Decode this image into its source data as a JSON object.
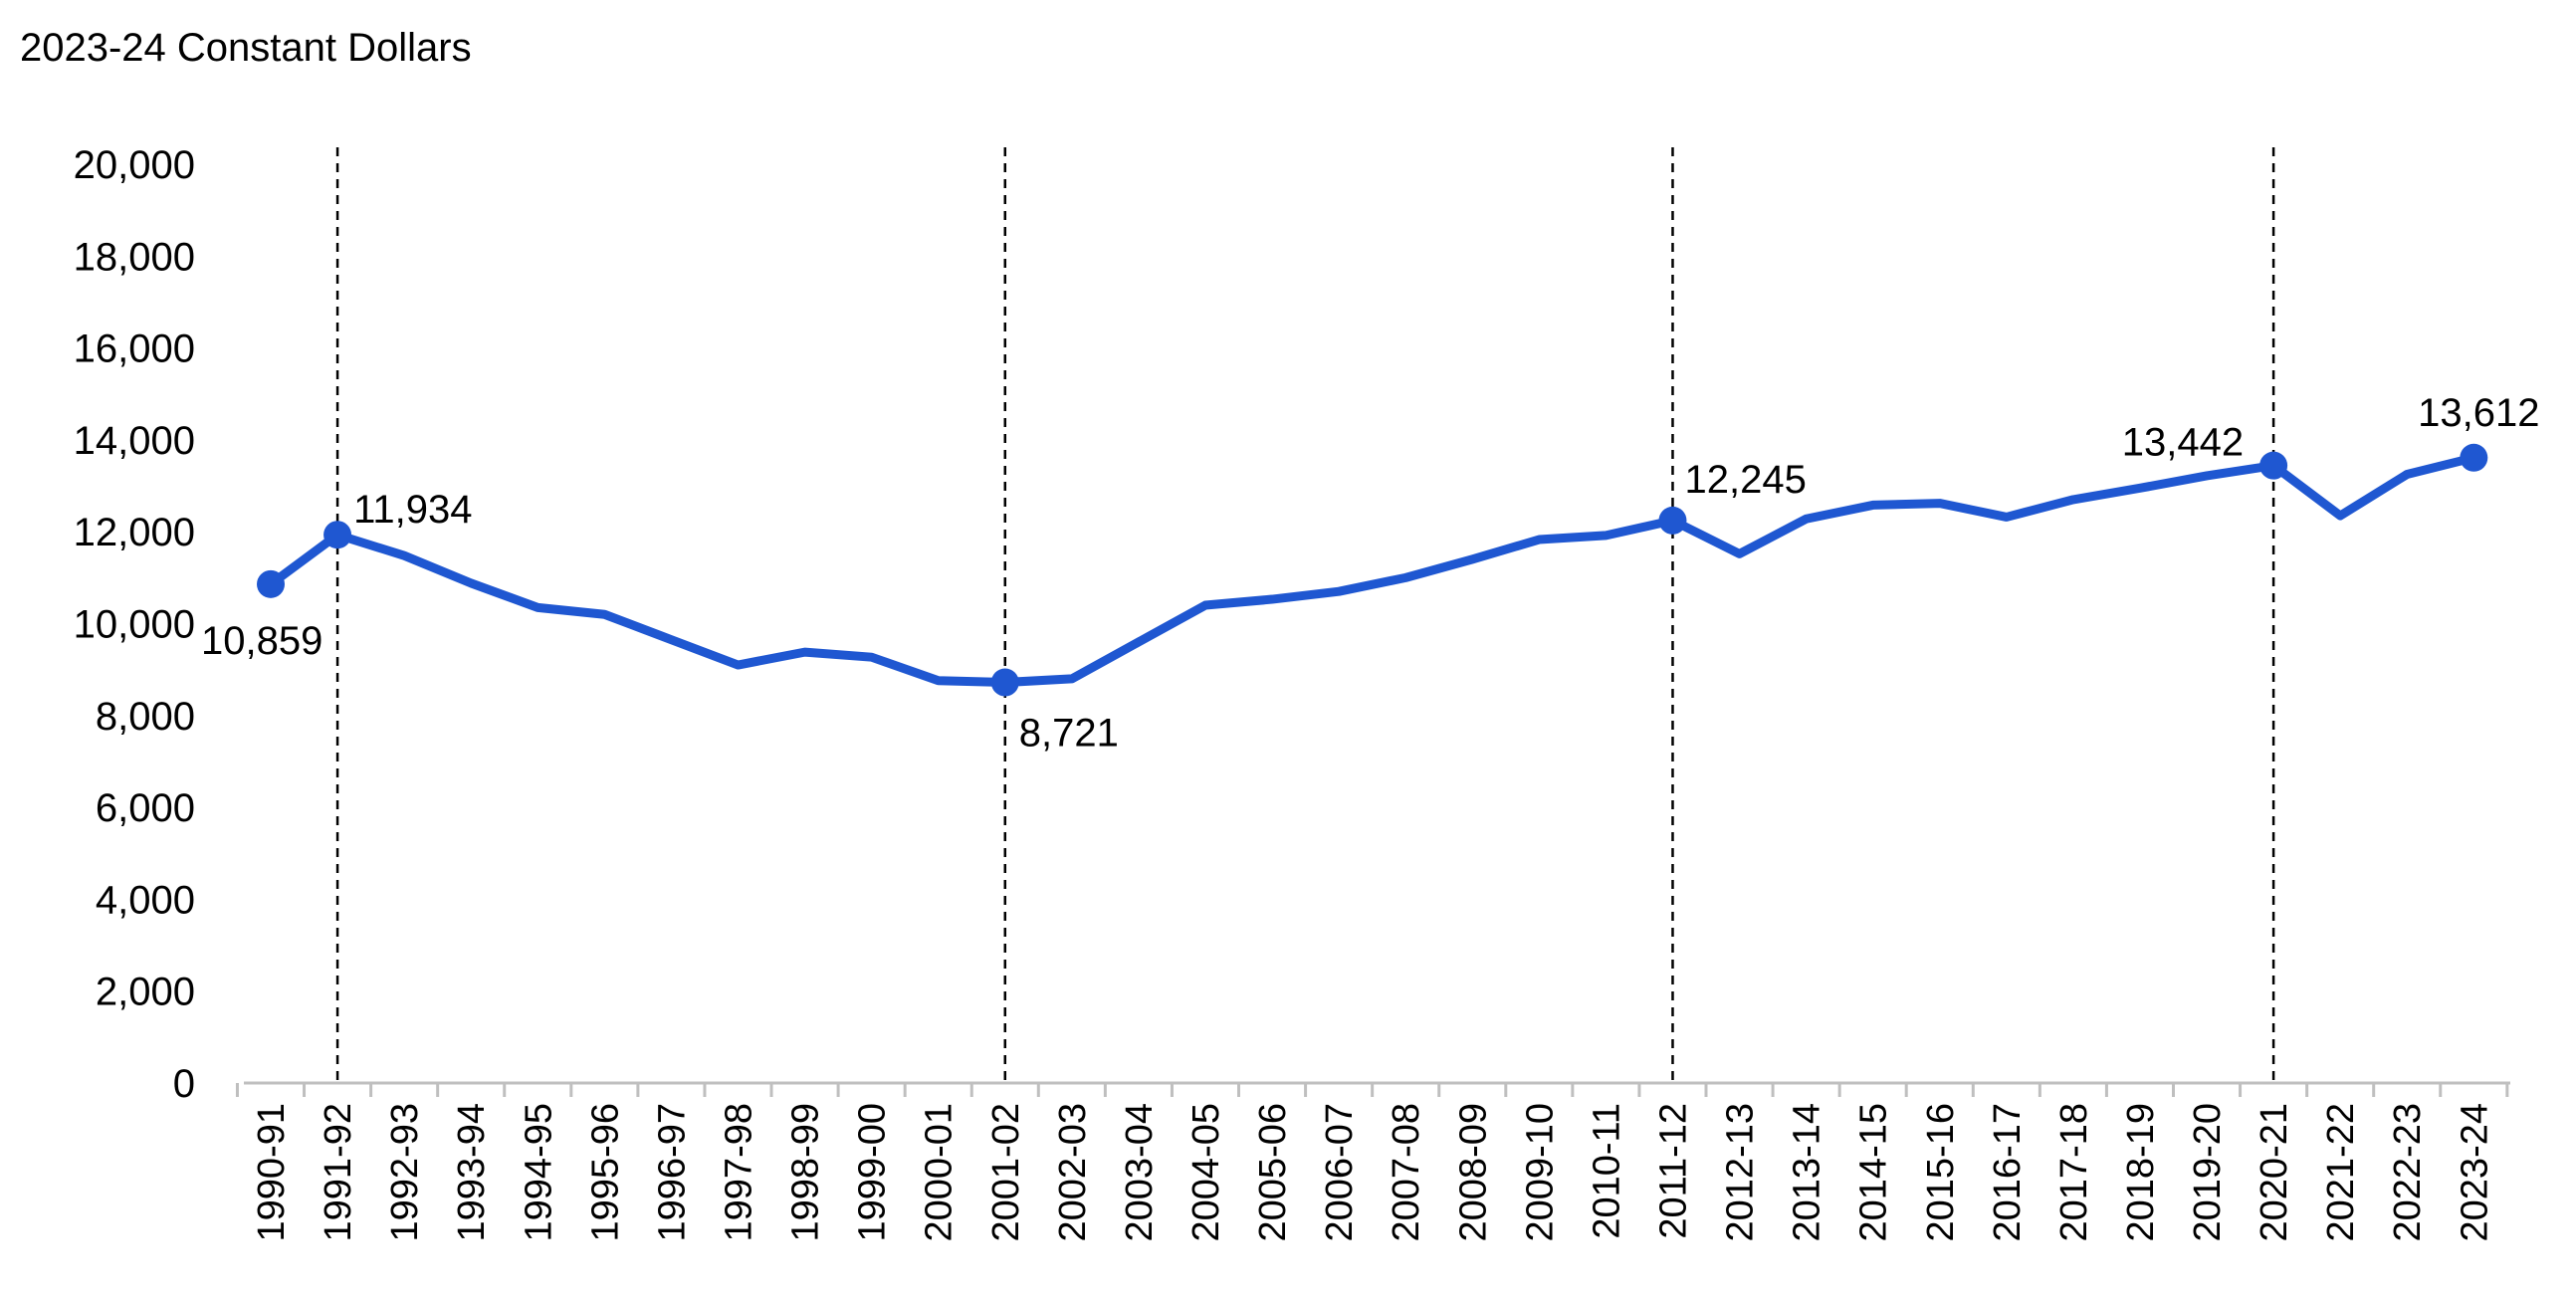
{
  "chart_data": {
    "type": "line",
    "unit_label": "2023-24 Constant Dollars",
    "title": "",
    "xlabel": "",
    "ylabel": "",
    "ylim": [
      0,
      20000
    ],
    "y_ticks": [
      "0",
      "2,000",
      "4,000",
      "6,000",
      "8,000",
      "10,000",
      "12,000",
      "14,000",
      "16,000",
      "18,000",
      "20,000"
    ],
    "y_tick_values": [
      0,
      2000,
      4000,
      6000,
      8000,
      10000,
      12000,
      14000,
      16000,
      18000,
      20000
    ],
    "grid": false,
    "legend": "none",
    "categories": [
      "1990-91",
      "1991-92",
      "1992-93",
      "1993-94",
      "1994-95",
      "1995-96",
      "1996-97",
      "1997-98",
      "1998-99",
      "1999-00",
      "2000-01",
      "2001-02",
      "2002-03",
      "2003-04",
      "2004-05",
      "2005-06",
      "2006-07",
      "2007-08",
      "2008-09",
      "2009-10",
      "2010-11",
      "2011-12",
      "2012-13",
      "2013-14",
      "2014-15",
      "2015-16",
      "2016-17",
      "2017-18",
      "2018-19",
      "2019-20",
      "2020-21",
      "2021-22",
      "2022-23",
      "2023-24"
    ],
    "series": [
      {
        "values": [
          10859,
          11934,
          11480,
          10880,
          10350,
          10200,
          9650,
          9100,
          9380,
          9270,
          8760,
          8721,
          8800,
          9600,
          10400,
          10530,
          10700,
          11000,
          11400,
          11830,
          11920,
          12245,
          11520,
          12280,
          12580,
          12620,
          12320,
          12700,
          12950,
          13220,
          13442,
          12350,
          13250,
          13612
        ],
        "color": "#1f57d1"
      }
    ],
    "highlighted_points": [
      {
        "category": "1990-91",
        "label": "10,859"
      },
      {
        "category": "1991-92",
        "label": "11,934"
      },
      {
        "category": "2001-02",
        "label": "8,721"
      },
      {
        "category": "2011-12",
        "label": "12,245"
      },
      {
        "category": "2020-21",
        "label": "13,442"
      },
      {
        "category": "2023-24",
        "label": "13,612"
      }
    ],
    "reference_lines": [
      "1991-92",
      "2001-02",
      "2011-12",
      "2020-21"
    ]
  }
}
